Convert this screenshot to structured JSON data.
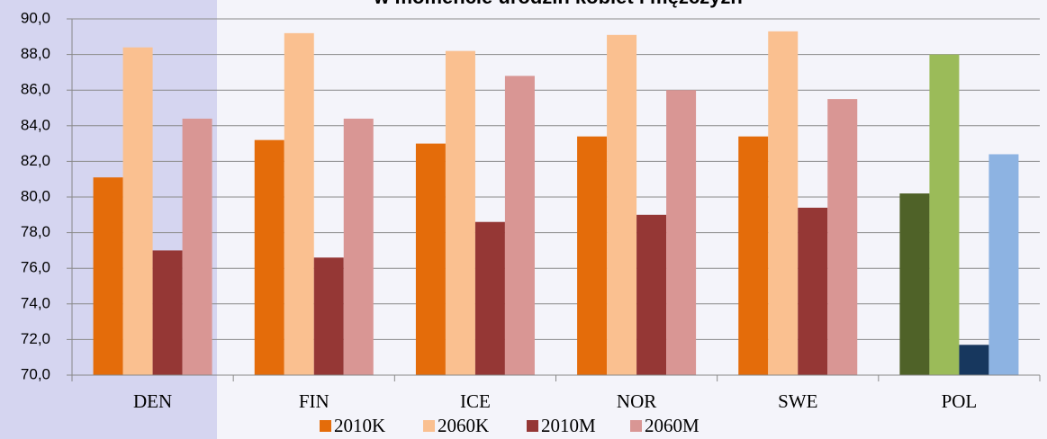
{
  "chart_data": {
    "type": "bar",
    "title": "w momencie urodzin kobiet i mężczyzn",
    "categories": [
      "DEN",
      "FIN",
      "ICE",
      "NOR",
      "SWE",
      "POL"
    ],
    "series": [
      {
        "name": "2010K",
        "color": "#e46c0a",
        "colors": [
          "#e46c0a",
          "#e46c0a",
          "#e46c0a",
          "#e46c0a",
          "#e46c0a",
          "#4f6228"
        ],
        "values": [
          81.1,
          83.2,
          83.0,
          83.4,
          83.4,
          80.2
        ]
      },
      {
        "name": "2060K",
        "color": "#fac090",
        "colors": [
          "#fac090",
          "#fac090",
          "#fac090",
          "#fac090",
          "#fac090",
          "#9bbb59"
        ],
        "values": [
          88.4,
          89.2,
          88.2,
          89.1,
          89.3,
          88.0
        ]
      },
      {
        "name": "2010M",
        "color": "#953735",
        "colors": [
          "#953735",
          "#953735",
          "#953735",
          "#953735",
          "#953735",
          "#17375e"
        ],
        "values": [
          77.0,
          76.6,
          78.6,
          79.0,
          79.4,
          71.7
        ]
      },
      {
        "name": "2060M",
        "color": "#d99694",
        "colors": [
          "#d99694",
          "#d99694",
          "#d99694",
          "#d99694",
          "#d99694",
          "#8db3e2"
        ],
        "values": [
          84.4,
          84.4,
          86.8,
          86.0,
          85.5,
          82.4
        ]
      }
    ],
    "ylim": [
      70,
      90
    ],
    "yticks": [
      {
        "value": 70,
        "label": "70,0"
      },
      {
        "value": 72,
        "label": "72,0"
      },
      {
        "value": 74,
        "label": "74,0"
      },
      {
        "value": 76,
        "label": "76,0"
      },
      {
        "value": 78,
        "label": "78,0"
      },
      {
        "value": 80,
        "label": "80,0"
      },
      {
        "value": 82,
        "label": "82,0"
      },
      {
        "value": 84,
        "label": "84,0"
      },
      {
        "value": 86,
        "label": "86,0"
      },
      {
        "value": 88,
        "label": "88,0"
      },
      {
        "value": 90,
        "label": "90,0"
      }
    ],
    "grid": true
  }
}
